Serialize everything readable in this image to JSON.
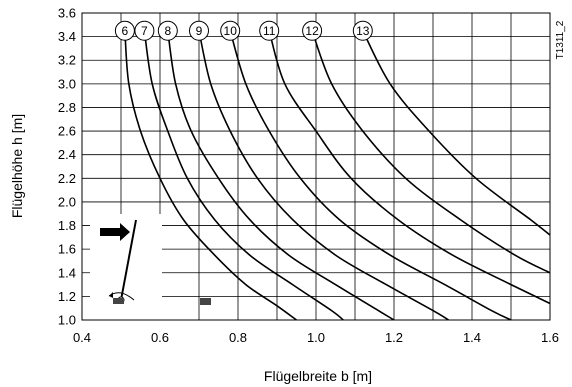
{
  "chart_data": {
    "type": "line",
    "title": "",
    "xlabel": "Flügelbreite b [m]",
    "ylabel": "Flügelhöhe h [m]",
    "code": "T1311_2",
    "xlim": [
      0.4,
      1.6
    ],
    "ylim": [
      1.0,
      3.6
    ],
    "x_major_ticks": [
      0.4,
      0.6,
      0.8,
      1.0,
      1.2,
      1.4,
      1.6
    ],
    "x_major_tick_labels": [
      "0.4",
      "0.6",
      "0.8",
      "1.0",
      "1.2",
      "1.4",
      "1.6"
    ],
    "x_grid_step": 0.1,
    "y_ticks": [
      1.0,
      1.2,
      1.4,
      1.6,
      1.8,
      2.0,
      2.2,
      2.4,
      2.6,
      2.8,
      3.0,
      3.2,
      3.4,
      3.6
    ],
    "y_tick_labels": [
      "1.0",
      "1.2",
      "1.4",
      "1.6",
      "1.8",
      "2.0",
      "2.2",
      "2.4",
      "2.6",
      "2.8",
      "3.0",
      "3.2",
      "3.4",
      "3.6"
    ],
    "grid": true,
    "series": [
      {
        "name": "6",
        "x": [
          0.51,
          0.52,
          0.55,
          0.6,
          0.66,
          0.74,
          0.82,
          0.9,
          0.95
        ],
        "y": [
          3.45,
          3.0,
          2.6,
          2.2,
          1.85,
          1.55,
          1.3,
          1.12,
          1.0
        ]
      },
      {
        "name": "7",
        "x": [
          0.56,
          0.58,
          0.62,
          0.67,
          0.74,
          0.83,
          0.94,
          1.04,
          1.07
        ],
        "y": [
          3.45,
          3.0,
          2.6,
          2.2,
          1.85,
          1.55,
          1.3,
          1.08,
          1.0
        ]
      },
      {
        "name": "8",
        "x": [
          0.62,
          0.64,
          0.68,
          0.75,
          0.83,
          0.93,
          1.05,
          1.16,
          1.2
        ],
        "y": [
          3.45,
          3.0,
          2.6,
          2.2,
          1.85,
          1.55,
          1.3,
          1.08,
          1.0
        ]
      },
      {
        "name": "9",
        "x": [
          0.7,
          0.73,
          0.78,
          0.85,
          0.94,
          1.05,
          1.18,
          1.3,
          1.34
        ],
        "y": [
          3.45,
          3.0,
          2.6,
          2.2,
          1.85,
          1.55,
          1.3,
          1.08,
          1.0
        ]
      },
      {
        "name": "10",
        "x": [
          0.78,
          0.82,
          0.88,
          0.96,
          1.06,
          1.19,
          1.33,
          1.45,
          1.5
        ],
        "y": [
          3.45,
          3.0,
          2.6,
          2.2,
          1.85,
          1.55,
          1.3,
          1.08,
          1.0
        ]
      },
      {
        "name": "11",
        "x": [
          0.88,
          0.92,
          1.0,
          1.09,
          1.21,
          1.35,
          1.5,
          1.6
        ],
        "y": [
          3.45,
          3.0,
          2.6,
          2.2,
          1.85,
          1.55,
          1.3,
          1.14
        ]
      },
      {
        "name": "12",
        "x": [
          0.99,
          1.04,
          1.12,
          1.23,
          1.37,
          1.51,
          1.6
        ],
        "y": [
          3.45,
          3.0,
          2.6,
          2.2,
          1.85,
          1.55,
          1.4
        ]
      },
      {
        "name": "13",
        "x": [
          1.12,
          1.19,
          1.29,
          1.41,
          1.55,
          1.6
        ],
        "y": [
          3.45,
          3.0,
          2.6,
          2.2,
          1.85,
          1.72
        ]
      }
    ]
  }
}
